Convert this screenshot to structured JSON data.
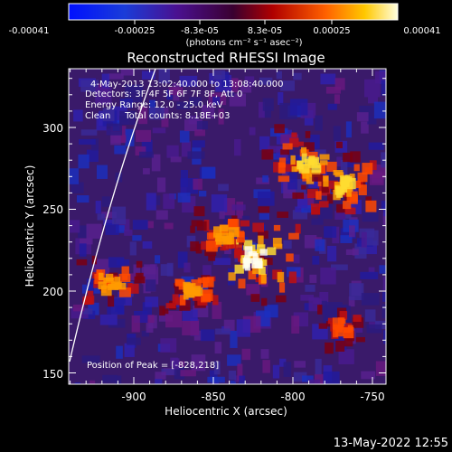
{
  "colorbar": {
    "tick_labels": [
      "-0.00041",
      "-0.00025",
      "-8.3e-05",
      "8.3e-05",
      "0.00025",
      "0.00041"
    ],
    "units": "(photons cm⁻² s⁻¹ asec⁻²)"
  },
  "title": "Reconstructed RHESSI Image",
  "info": {
    "time": "4-May-2013 13:02:40.000 to 13:08:40.000",
    "detectors": "Detectors: 3F 4F 5F 6F 7F 8F, Att 0",
    "energy": "Energy Range: 12.0 - 25.0 keV",
    "algorithm": "Clean     Total counts: 8.18E+03"
  },
  "peak_text": "Position of Peak = [-828,218]",
  "axes": {
    "x_label": "Heliocentric X (arcsec)",
    "y_label": "Heliocentric Y (arcsec)",
    "x_ticks": [
      "-900",
      "-850",
      "-800",
      "-750"
    ],
    "y_ticks": [
      "300",
      "250",
      "200",
      "150"
    ]
  },
  "footer_date": "13-May-2022 12:55",
  "image_data": {
    "bright_sources": [
      {
        "x": -824,
        "y": 221,
        "intensity": 1.0
      },
      {
        "x": -790,
        "y": 278,
        "intensity": 0.85
      },
      {
        "x": -768,
        "y": 265,
        "intensity": 0.75
      },
      {
        "x": -915,
        "y": 205,
        "intensity": 0.7
      },
      {
        "x": -862,
        "y": 200,
        "intensity": 0.65
      },
      {
        "x": -843,
        "y": 235,
        "intensity": 0.6
      },
      {
        "x": -768,
        "y": 178,
        "intensity": 0.55
      }
    ]
  }
}
